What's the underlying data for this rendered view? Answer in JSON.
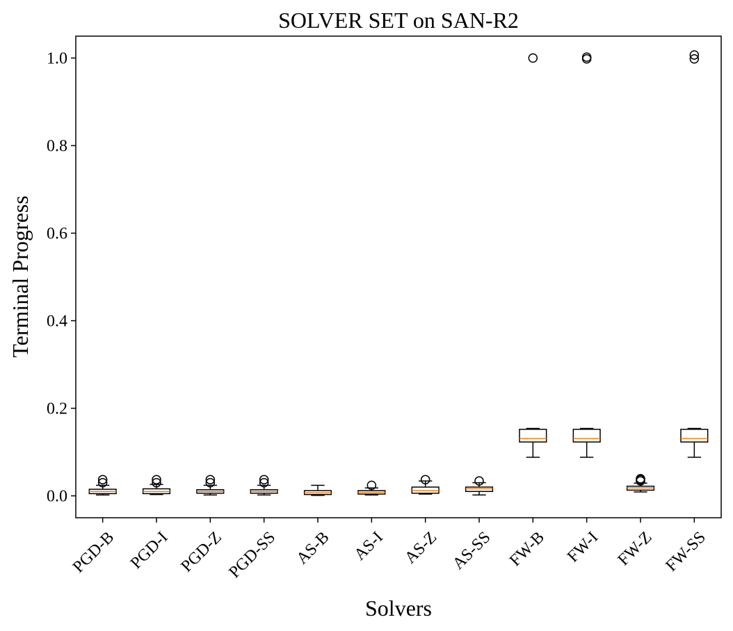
{
  "chart_data": {
    "type": "box",
    "title": "SOLVER SET on SAN-R2",
    "xlabel": "Solvers",
    "ylabel": "Terminal Progress",
    "ylim": [
      -0.05,
      1.05
    ],
    "yticks": [
      0.0,
      0.2,
      0.4,
      0.6,
      0.8,
      1.0
    ],
    "ytick_labels": [
      "0.0",
      "0.2",
      "0.4",
      "0.6",
      "0.8",
      "1.0"
    ],
    "grid": false,
    "colors": {
      "box": "#000000",
      "median": "#ff7f0e",
      "frame": "#000000"
    },
    "boxes": [
      {
        "label": "PGD-B",
        "whislo": 0.002,
        "q1": 0.005,
        "med": 0.01,
        "q3": 0.015,
        "whishi": 0.024,
        "fliers": [
          0.03,
          0.037
        ]
      },
      {
        "label": "PGD-I",
        "whislo": 0.003,
        "q1": 0.005,
        "med": 0.01,
        "q3": 0.016,
        "whishi": 0.026,
        "fliers": [
          0.03,
          0.037
        ]
      },
      {
        "label": "PGD-Z",
        "whislo": 0.002,
        "q1": 0.006,
        "med": 0.01,
        "q3": 0.014,
        "whishi": 0.024,
        "fliers": [
          0.03,
          0.037
        ]
      },
      {
        "label": "PGD-SS",
        "whislo": 0.002,
        "q1": 0.006,
        "med": 0.01,
        "q3": 0.014,
        "whishi": 0.024,
        "fliers": [
          0.03,
          0.037
        ]
      },
      {
        "label": "AS-B",
        "whislo": 0.001,
        "q1": 0.003,
        "med": 0.007,
        "q3": 0.012,
        "whishi": 0.024,
        "fliers": []
      },
      {
        "label": "AS-I",
        "whislo": 0.002,
        "q1": 0.004,
        "med": 0.008,
        "q3": 0.012,
        "whishi": 0.018,
        "fliers": [
          0.024
        ]
      },
      {
        "label": "AS-Z",
        "whislo": 0.004,
        "q1": 0.006,
        "med": 0.012,
        "q3": 0.02,
        "whishi": 0.034,
        "fliers": [
          0.037
        ]
      },
      {
        "label": "AS-SS",
        "whislo": 0.002,
        "q1": 0.01,
        "med": 0.016,
        "q3": 0.02,
        "whishi": 0.03,
        "fliers": [
          0.034
        ]
      },
      {
        "label": "FW-B",
        "whislo": 0.088,
        "q1": 0.123,
        "med": 0.131,
        "q3": 0.152,
        "whishi": 0.154,
        "fliers": [
          1.0
        ]
      },
      {
        "label": "FW-I",
        "whislo": 0.088,
        "q1": 0.123,
        "med": 0.131,
        "q3": 0.152,
        "whishi": 0.154,
        "fliers": [
          0.998,
          1.002
        ]
      },
      {
        "label": "FW-Z",
        "whislo": 0.009,
        "q1": 0.013,
        "med": 0.018,
        "q3": 0.022,
        "whishi": 0.029,
        "fliers": [
          0.034,
          0.037,
          0.039
        ]
      },
      {
        "label": "FW-SS",
        "whislo": 0.088,
        "q1": 0.123,
        "med": 0.131,
        "q3": 0.152,
        "whishi": 0.154,
        "fliers": [
          0.998,
          1.007
        ]
      }
    ]
  }
}
